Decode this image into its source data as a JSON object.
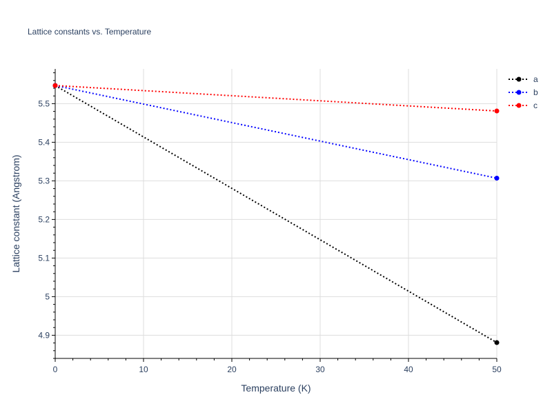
{
  "chart_data": {
    "type": "line",
    "title": "Lattice constants vs. Temperature",
    "xlabel": "Temperature (K)",
    "ylabel": "Lattice constant (Angstrom)",
    "xlim": [
      0,
      50
    ],
    "ylim": [
      4.84,
      5.59
    ],
    "x_ticks": [
      0,
      10,
      20,
      30,
      40,
      50
    ],
    "x_tick_labels": [
      "0",
      "10",
      "20",
      "30",
      "40",
      "50"
    ],
    "y_ticks": [
      4.9,
      5.0,
      5.1,
      5.2,
      5.3,
      5.4,
      5.5
    ],
    "y_tick_labels": [
      "4.9",
      "5",
      "5.1",
      "5.2",
      "5.3",
      "5.4",
      "5.5"
    ],
    "grid": true,
    "legend_position": "top-right",
    "line_style": "dotted",
    "series": [
      {
        "name": "a",
        "color": "#000000",
        "x": [
          0,
          50
        ],
        "values": [
          5.547,
          4.881
        ]
      },
      {
        "name": "b",
        "color": "#0000ff",
        "x": [
          0,
          50
        ],
        "values": [
          5.547,
          5.307
        ]
      },
      {
        "name": "c",
        "color": "#ff0000",
        "x": [
          0,
          50
        ],
        "values": [
          5.547,
          5.481
        ]
      }
    ]
  }
}
